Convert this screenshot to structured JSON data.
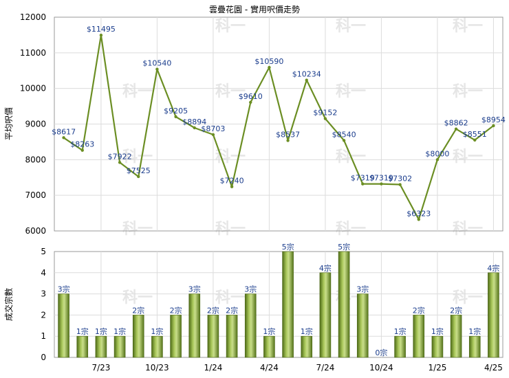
{
  "chart_data": [
    {
      "type": "line",
      "title": "雲疊花園 - 實用呎價走勢",
      "ylabel": "平均呎價",
      "ylim": [
        6000,
        12000
      ],
      "yticks": [
        "6000",
        "7000",
        "8000",
        "9000",
        "10000",
        "11000",
        "12000"
      ],
      "values": [
        8617,
        8263,
        11495,
        7922,
        7525,
        10540,
        9205,
        8894,
        8703,
        7240,
        9610,
        10590,
        8537,
        10234,
        9152,
        8540,
        7319,
        7319,
        7302,
        6323,
        8000,
        8862,
        8551,
        8954
      ],
      "labels": [
        "$8617",
        "$8263",
        "$11495",
        "$7922",
        "$7525",
        "$10540",
        "$9205",
        "$8894",
        "$8703",
        "$7240",
        "$9610",
        "$10590",
        "$8537",
        "$10234",
        "$9152",
        "$8540",
        "$7319",
        "$7319",
        "$7302",
        "$6323",
        "$8000",
        "$8862",
        "$8551",
        "$8954"
      ],
      "line_color": "#6b8e23",
      "grid": true
    },
    {
      "type": "bar",
      "ylabel": "成交宗數",
      "ylim": [
        0,
        5
      ],
      "yticks": [
        "0",
        "1",
        "2",
        "3",
        "4",
        "5"
      ],
      "x_tick_labels": [
        {
          "index": 2,
          "label": "7/23"
        },
        {
          "index": 5,
          "label": "10/23"
        },
        {
          "index": 8,
          "label": "1/24"
        },
        {
          "index": 11,
          "label": "4/24"
        },
        {
          "index": 14,
          "label": "7/24"
        },
        {
          "index": 17,
          "label": "10/24"
        },
        {
          "index": 20,
          "label": "1/25"
        },
        {
          "index": 23,
          "label": "4/25"
        }
      ],
      "values": [
        3,
        1,
        1,
        1,
        2,
        1,
        2,
        3,
        2,
        2,
        3,
        1,
        5,
        1,
        4,
        5,
        3,
        0,
        1,
        2,
        1,
        2,
        1,
        4
      ],
      "labels": [
        "3宗",
        "1宗",
        "1宗",
        "1宗",
        "2宗",
        "1宗",
        "2宗",
        "3宗",
        "2宗",
        "2宗",
        "3宗",
        "1宗",
        "5宗",
        "1宗",
        "4宗",
        "5宗",
        "3宗",
        "0宗",
        "1宗",
        "2宗",
        "1宗",
        "2宗",
        "1宗",
        "4宗"
      ],
      "bar_color": "#6b8e23",
      "grid": true
    }
  ],
  "watermark": "科一"
}
